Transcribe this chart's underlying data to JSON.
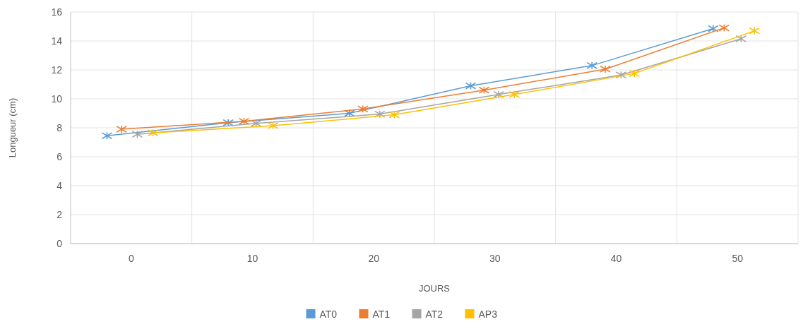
{
  "chart_data": {
    "type": "line",
    "xlabel": "JOURS",
    "ylabel": "Longueur (cm)",
    "xlim": [
      -5,
      55
    ],
    "xticks": [
      {
        "value": -5,
        "label": null
      },
      0,
      {
        "value": 5,
        "label": null
      },
      10,
      {
        "value": 15,
        "label": null
      },
      20,
      {
        "value": 25,
        "label": null
      },
      30,
      {
        "value": 35,
        "label": null
      },
      40,
      {
        "value": 45,
        "label": null
      },
      50,
      {
        "value": 55,
        "label": null
      }
    ],
    "ylim": [
      0,
      16
    ],
    "yticks": [
      0,
      2,
      4,
      6,
      8,
      10,
      12,
      14,
      16
    ],
    "grid": true,
    "legend": "bottom",
    "marker": "cross",
    "line_style": "solid",
    "series": [
      {
        "name": "AT0",
        "color": "#5b9bd5",
        "x": [
          -2,
          8,
          18,
          28,
          38,
          48
        ],
        "values": [
          7.45,
          8.35,
          9.0,
          10.9,
          12.3,
          14.85
        ]
      },
      {
        "name": "AT1",
        "color": "#ed7d31",
        "x": [
          -0.8,
          9.3,
          19.1,
          29.1,
          39.1,
          48.9
        ],
        "values": [
          7.9,
          8.45,
          9.3,
          10.6,
          12.05,
          14.9
        ]
      },
      {
        "name": "AT2",
        "color": "#a5a5a5",
        "x": [
          0.5,
          10.3,
          20.5,
          30.3,
          40.4,
          50.3
        ],
        "values": [
          7.55,
          8.3,
          8.95,
          10.3,
          11.65,
          14.15
        ]
      },
      {
        "name": "AP3",
        "color": "#ffc000",
        "x": [
          1.8,
          11.7,
          21.7,
          31.6,
          41.5,
          51.4
        ],
        "values": [
          7.65,
          8.15,
          8.9,
          10.3,
          11.75,
          14.7
        ]
      }
    ]
  }
}
